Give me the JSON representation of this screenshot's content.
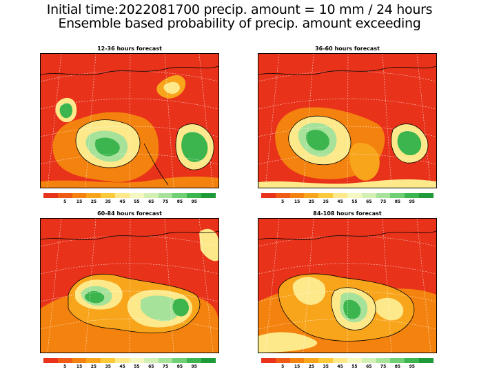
{
  "title_line1": "Initial time:2022081700 precip. amount = 10 mm / 24 hours",
  "title_line2": "Ensemble based probability of precip. amount exceeding",
  "panels": [
    {
      "title": "12-36 hours forecast"
    },
    {
      "title": "36-60 hours forecast"
    },
    {
      "title": "60-84 hours forecast"
    },
    {
      "title": "84-108 hours forecast"
    }
  ],
  "colorbar": {
    "colors": [
      "#e8321a",
      "#f05a14",
      "#f4820e",
      "#f8a51c",
      "#fbc93a",
      "#fde98a",
      "#f4f7c0",
      "#d3f0b4",
      "#a6e29a",
      "#6fcf74",
      "#3cb54e",
      "#1e9a38"
    ],
    "labels": [
      "5",
      "15",
      "25",
      "35",
      "45",
      "55",
      "65",
      "75",
      "85",
      "95"
    ]
  },
  "colors": {
    "background_red": "#e8321a",
    "orange": "#f4820e",
    "light_orange": "#f8a51c",
    "yellow": "#fde98a",
    "light_green": "#a6e29a",
    "green": "#3cb54e"
  }
}
